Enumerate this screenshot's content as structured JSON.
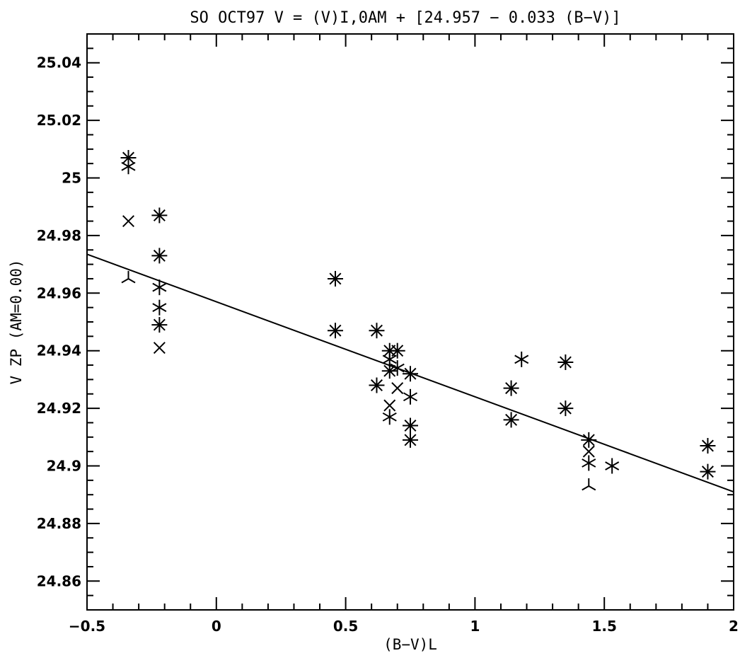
{
  "chart_data": {
    "type": "scatter",
    "title": "SO OCT97    V = (V)I,0AM + [24.957 − 0.033 (B−V)]",
    "xlabel": "(B−V)L",
    "ylabel": "V ZP   (AM=0.00)",
    "xlim": [
      -0.5,
      2.0
    ],
    "ylim": [
      24.85,
      25.05
    ],
    "x_ticks": [
      -0.5,
      0,
      0.5,
      1,
      1.5,
      2
    ],
    "x_tick_labels": [
      "−0.5",
      "0",
      "0.5",
      "1",
      "1.5",
      "2"
    ],
    "y_ticks": [
      24.86,
      24.88,
      24.9,
      24.92,
      24.94,
      24.96,
      24.98,
      25.0,
      25.02,
      25.04
    ],
    "y_tick_labels": [
      "24.86",
      "24.88",
      "24.9",
      "24.92",
      "24.94",
      "24.96",
      "24.98",
      "25",
      "25.02",
      "25.04"
    ],
    "fit_line": {
      "intercept": 24.957,
      "slope": -0.033
    },
    "grid": false,
    "points": [
      {
        "x": -0.34,
        "y": 25.007,
        "marker": "asterisk8"
      },
      {
        "x": -0.34,
        "y": 25.004,
        "marker": "asterisk6"
      },
      {
        "x": -0.34,
        "y": 24.985,
        "marker": "cross"
      },
      {
        "x": -0.34,
        "y": 24.965,
        "marker": "tripod"
      },
      {
        "x": -0.22,
        "y": 24.987,
        "marker": "asterisk8"
      },
      {
        "x": -0.22,
        "y": 24.973,
        "marker": "asterisk8"
      },
      {
        "x": -0.22,
        "y": 24.962,
        "marker": "asterisk6"
      },
      {
        "x": -0.22,
        "y": 24.955,
        "marker": "asterisk6"
      },
      {
        "x": -0.22,
        "y": 24.949,
        "marker": "asterisk8"
      },
      {
        "x": -0.22,
        "y": 24.941,
        "marker": "cross"
      },
      {
        "x": 0.46,
        "y": 24.965,
        "marker": "asterisk8"
      },
      {
        "x": 0.46,
        "y": 24.947,
        "marker": "asterisk8"
      },
      {
        "x": 0.62,
        "y": 24.947,
        "marker": "asterisk8"
      },
      {
        "x": 0.62,
        "y": 24.928,
        "marker": "asterisk8"
      },
      {
        "x": 0.67,
        "y": 24.94,
        "marker": "asterisk8"
      },
      {
        "x": 0.67,
        "y": 24.937,
        "marker": "asterisk6"
      },
      {
        "x": 0.67,
        "y": 24.933,
        "marker": "asterisk8"
      },
      {
        "x": 0.67,
        "y": 24.921,
        "marker": "cross"
      },
      {
        "x": 0.67,
        "y": 24.917,
        "marker": "asterisk6"
      },
      {
        "x": 0.7,
        "y": 24.94,
        "marker": "asterisk8"
      },
      {
        "x": 0.7,
        "y": 24.934,
        "marker": "asterisk6"
      },
      {
        "x": 0.7,
        "y": 24.927,
        "marker": "cross"
      },
      {
        "x": 0.75,
        "y": 24.932,
        "marker": "asterisk8"
      },
      {
        "x": 0.75,
        "y": 24.924,
        "marker": "asterisk6"
      },
      {
        "x": 0.75,
        "y": 24.914,
        "marker": "asterisk8"
      },
      {
        "x": 0.75,
        "y": 24.909,
        "marker": "asterisk8"
      },
      {
        "x": 1.14,
        "y": 24.927,
        "marker": "asterisk8"
      },
      {
        "x": 1.14,
        "y": 24.916,
        "marker": "asterisk8"
      },
      {
        "x": 1.18,
        "y": 24.937,
        "marker": "asterisk6"
      },
      {
        "x": 1.35,
        "y": 24.936,
        "marker": "asterisk8"
      },
      {
        "x": 1.35,
        "y": 24.92,
        "marker": "asterisk8"
      },
      {
        "x": 1.44,
        "y": 24.909,
        "marker": "asterisk8"
      },
      {
        "x": 1.44,
        "y": 24.905,
        "marker": "cross"
      },
      {
        "x": 1.44,
        "y": 24.901,
        "marker": "asterisk6"
      },
      {
        "x": 1.44,
        "y": 24.893,
        "marker": "tripod"
      },
      {
        "x": 1.53,
        "y": 24.9,
        "marker": "asterisk6"
      },
      {
        "x": 1.9,
        "y": 24.907,
        "marker": "asterisk8"
      },
      {
        "x": 1.9,
        "y": 24.898,
        "marker": "asterisk8"
      }
    ]
  }
}
